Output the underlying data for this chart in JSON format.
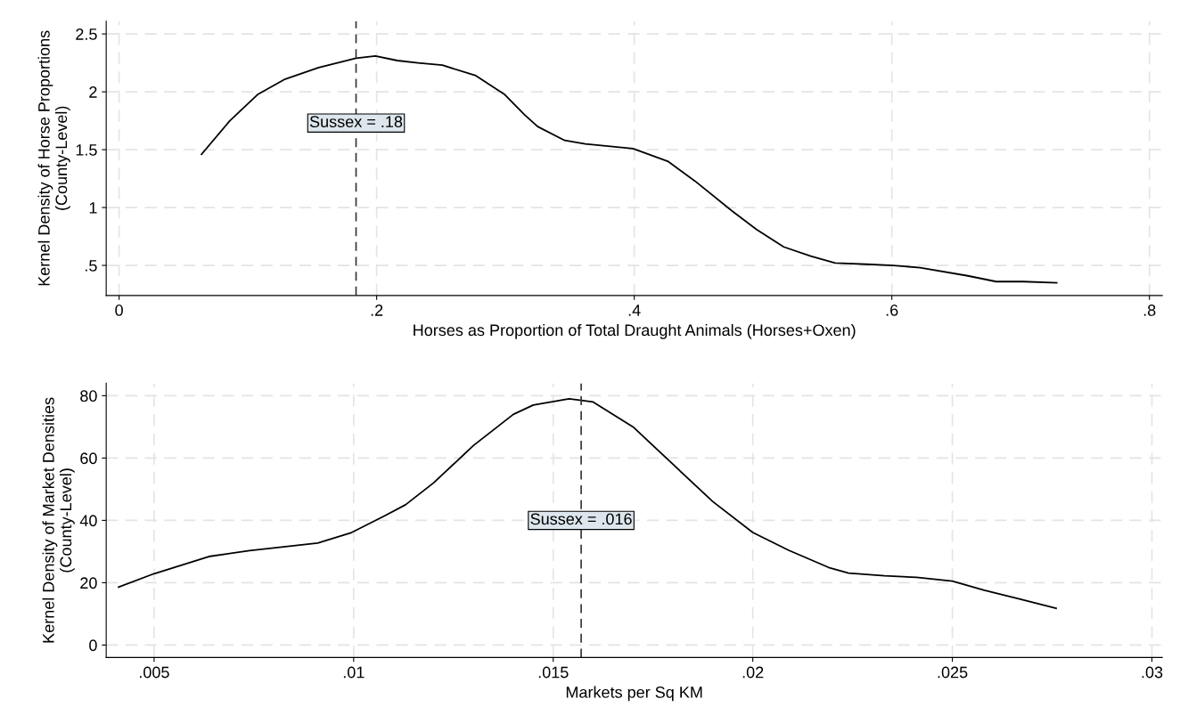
{
  "chart_data": [
    {
      "type": "line",
      "xlabel": "Horses as Proportion of Total Draught Animals (Horses+Oxen)",
      "ylabel": "Kernel Density of Horse Proportions\n(County-Level)",
      "x": [
        0.064,
        0.086,
        0.108,
        0.129,
        0.155,
        0.184,
        0.199,
        0.216,
        0.232,
        0.251,
        0.277,
        0.299,
        0.315,
        0.325,
        0.346,
        0.362,
        0.399,
        0.426,
        0.447,
        0.476,
        0.495,
        0.516,
        0.537,
        0.556,
        0.58,
        0.601,
        0.622,
        0.659,
        0.681,
        0.702,
        0.728
      ],
      "series": [
        {
          "color": "#000000",
          "values": [
            1.46,
            1.75,
            1.98,
            2.11,
            2.21,
            2.29,
            2.31,
            2.27,
            2.25,
            2.23,
            2.14,
            1.98,
            1.8,
            1.7,
            1.58,
            1.55,
            1.51,
            1.4,
            1.23,
            0.97,
            0.81,
            0.66,
            0.58,
            0.52,
            0.51,
            0.5,
            0.48,
            0.41,
            0.36,
            0.36,
            0.35
          ]
        }
      ],
      "xlim": [
        -0.01,
        0.81
      ],
      "ylim": [
        0.24,
        2.61
      ],
      "xticks": [
        {
          "value": 0,
          "label": "0"
        },
        {
          "value": 0.2,
          "label": ".2"
        },
        {
          "value": 0.4,
          "label": ".4"
        },
        {
          "value": 0.6,
          "label": ".6"
        },
        {
          "value": 0.8,
          "label": ".8"
        }
      ],
      "yticks": [
        {
          "value": 0.5,
          "label": ".5"
        },
        {
          "value": 1,
          "label": "1"
        },
        {
          "value": 1.5,
          "label": "1.5"
        },
        {
          "value": 2,
          "label": "2"
        },
        {
          "value": 2.5,
          "label": "2.5"
        }
      ],
      "ref_lines": [
        {
          "axis": "x",
          "value": 0.184,
          "color": "#333333",
          "line_style": "dashed"
        }
      ],
      "annotations": [
        {
          "text": "Sussex = .18",
          "x": 0.184,
          "y": 1.73
        }
      ],
      "grid": true,
      "legend": false,
      "marker": "none",
      "line_style": "solid"
    },
    {
      "type": "line",
      "xlabel": "Markets per Sq KM",
      "ylabel": "Kernel Density of Market Densities\n(County-Level)",
      "x": [
        0.00411,
        0.005,
        0.00637,
        0.00739,
        0.0091,
        0.00995,
        0.0108,
        0.0113,
        0.012,
        0.013,
        0.014,
        0.0145,
        0.0154,
        0.016,
        0.017,
        0.018,
        0.019,
        0.02,
        0.0209,
        0.0219,
        0.0224,
        0.0233,
        0.0241,
        0.025,
        0.0258,
        0.0267,
        0.0276
      ],
      "series": [
        {
          "color": "#000000",
          "values": [
            18.6,
            22.9,
            28.4,
            30.3,
            32.7,
            36.1,
            41.6,
            45,
            52,
            64,
            74,
            77,
            79,
            78,
            70,
            58,
            46,
            36.1,
            30.4,
            24.9,
            23.1,
            22.2,
            21.7,
            20.5,
            17.6,
            14.7,
            11.8
          ]
        }
      ],
      "xlim": [
        0.0038,
        0.03026
      ],
      "ylim": [
        -4,
        84
      ],
      "xticks": [
        {
          "value": 0.005,
          "label": ".005"
        },
        {
          "value": 0.01,
          "label": ".01"
        },
        {
          "value": 0.015,
          "label": ".015"
        },
        {
          "value": 0.02,
          "label": ".02"
        },
        {
          "value": 0.025,
          "label": ".025"
        },
        {
          "value": 0.03,
          "label": ".03"
        }
      ],
      "yticks": [
        0,
        20,
        40,
        60,
        80
      ],
      "ref_lines": [
        {
          "axis": "x",
          "value": 0.0157,
          "color": "#333333",
          "line_style": "dashed"
        }
      ],
      "annotations": [
        {
          "text": "Sussex = .016",
          "x": 0.0157,
          "y": 40
        }
      ],
      "grid": true,
      "legend": false,
      "marker": "none",
      "line_style": "solid"
    }
  ]
}
